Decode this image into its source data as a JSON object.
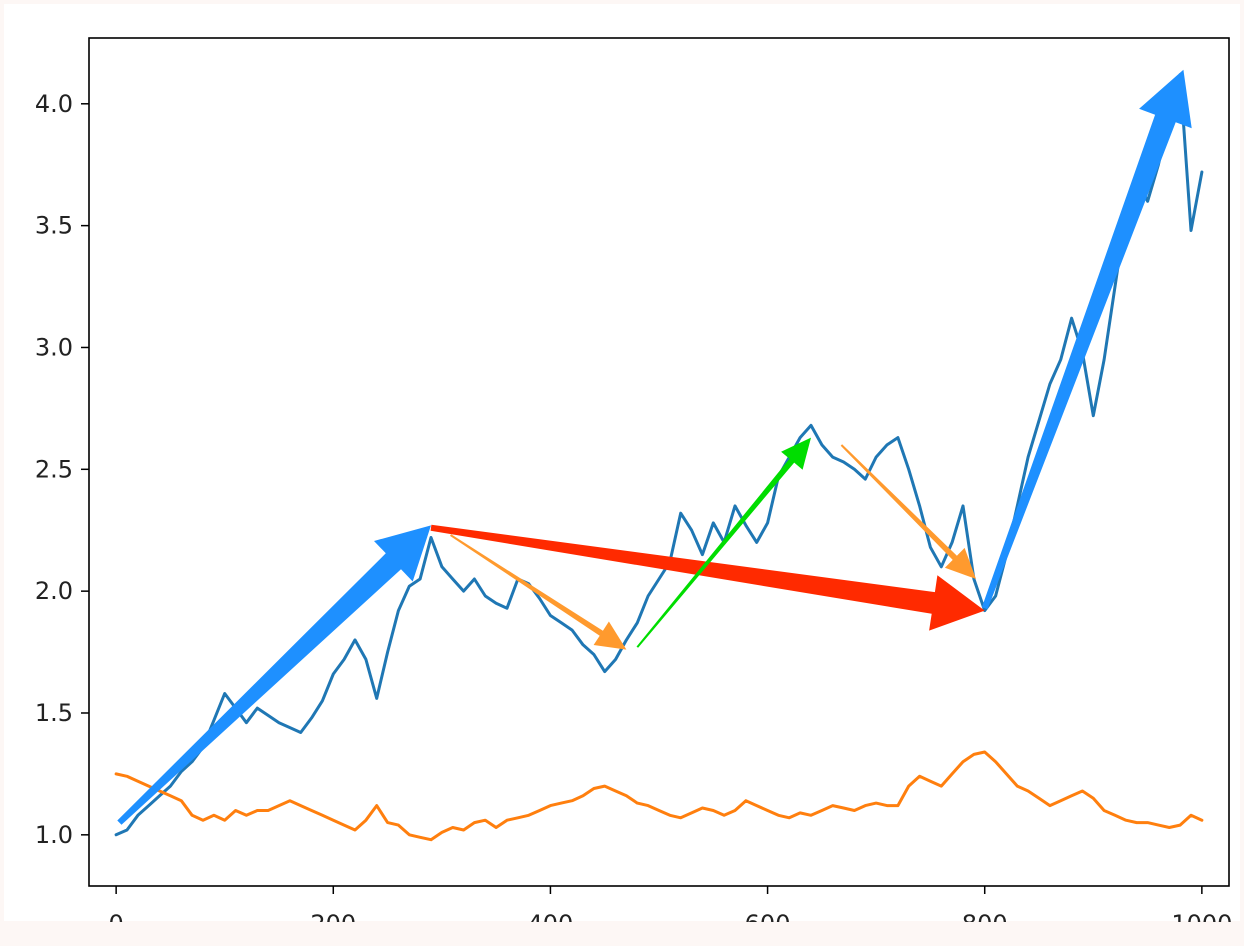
{
  "chart_data": {
    "type": "line",
    "title": "",
    "xlabel": "",
    "ylabel": "",
    "xlim": [
      -25,
      1025
    ],
    "ylim": [
      0.79,
      4.27
    ],
    "xticks": [
      0,
      200,
      400,
      600,
      800,
      1000
    ],
    "xtick_labels": [
      "0",
      "200",
      "400",
      "600",
      "800",
      "1000"
    ],
    "yticks": [
      1.0,
      1.5,
      2.0,
      2.5,
      3.0,
      3.5,
      4.0
    ],
    "ytick_labels": [
      "1.0",
      "1.5",
      "2.0",
      "2.5",
      "3.0",
      "3.5",
      "4.0"
    ],
    "grid": false,
    "legend": "none",
    "series": [
      {
        "color": "#1f77b4",
        "points": [
          [
            0,
            1.0
          ],
          [
            10,
            1.02
          ],
          [
            20,
            1.08
          ],
          [
            30,
            1.12
          ],
          [
            40,
            1.16
          ],
          [
            50,
            1.2
          ],
          [
            60,
            1.26
          ],
          [
            70,
            1.3
          ],
          [
            80,
            1.36
          ],
          [
            90,
            1.47
          ],
          [
            100,
            1.58
          ],
          [
            110,
            1.52
          ],
          [
            120,
            1.46
          ],
          [
            130,
            1.52
          ],
          [
            140,
            1.49
          ],
          [
            150,
            1.46
          ],
          [
            160,
            1.44
          ],
          [
            170,
            1.42
          ],
          [
            180,
            1.48
          ],
          [
            190,
            1.55
          ],
          [
            200,
            1.66
          ],
          [
            210,
            1.72
          ],
          [
            220,
            1.8
          ],
          [
            230,
            1.72
          ],
          [
            240,
            1.56
          ],
          [
            250,
            1.75
          ],
          [
            260,
            1.92
          ],
          [
            270,
            2.02
          ],
          [
            280,
            2.05
          ],
          [
            290,
            2.22
          ],
          [
            300,
            2.1
          ],
          [
            310,
            2.05
          ],
          [
            320,
            2.0
          ],
          [
            330,
            2.05
          ],
          [
            340,
            1.98
          ],
          [
            350,
            1.95
          ],
          [
            360,
            1.93
          ],
          [
            370,
            2.05
          ],
          [
            380,
            2.03
          ],
          [
            390,
            1.97
          ],
          [
            400,
            1.9
          ],
          [
            410,
            1.87
          ],
          [
            420,
            1.84
          ],
          [
            430,
            1.78
          ],
          [
            440,
            1.74
          ],
          [
            450,
            1.67
          ],
          [
            460,
            1.72
          ],
          [
            470,
            1.8
          ],
          [
            480,
            1.87
          ],
          [
            490,
            1.98
          ],
          [
            500,
            2.05
          ],
          [
            510,
            2.12
          ],
          [
            520,
            2.32
          ],
          [
            530,
            2.25
          ],
          [
            540,
            2.15
          ],
          [
            550,
            2.28
          ],
          [
            560,
            2.2
          ],
          [
            570,
            2.35
          ],
          [
            580,
            2.27
          ],
          [
            590,
            2.2
          ],
          [
            600,
            2.28
          ],
          [
            610,
            2.47
          ],
          [
            620,
            2.55
          ],
          [
            630,
            2.63
          ],
          [
            640,
            2.68
          ],
          [
            650,
            2.6
          ],
          [
            660,
            2.55
          ],
          [
            670,
            2.53
          ],
          [
            680,
            2.5
          ],
          [
            690,
            2.46
          ],
          [
            700,
            2.55
          ],
          [
            710,
            2.6
          ],
          [
            720,
            2.63
          ],
          [
            730,
            2.5
          ],
          [
            740,
            2.35
          ],
          [
            750,
            2.18
          ],
          [
            760,
            2.1
          ],
          [
            770,
            2.2
          ],
          [
            780,
            2.35
          ],
          [
            790,
            2.05
          ],
          [
            800,
            1.92
          ],
          [
            810,
            1.98
          ],
          [
            820,
            2.15
          ],
          [
            830,
            2.35
          ],
          [
            840,
            2.55
          ],
          [
            850,
            2.7
          ],
          [
            860,
            2.85
          ],
          [
            870,
            2.95
          ],
          [
            880,
            3.12
          ],
          [
            890,
            2.98
          ],
          [
            900,
            2.72
          ],
          [
            910,
            2.95
          ],
          [
            920,
            3.25
          ],
          [
            930,
            3.55
          ],
          [
            940,
            3.7
          ],
          [
            950,
            3.6
          ],
          [
            960,
            3.75
          ],
          [
            970,
            3.95
          ],
          [
            980,
            4.12
          ],
          [
            990,
            3.48
          ],
          [
            1000,
            3.72
          ]
        ]
      },
      {
        "color": "#ff7f0e",
        "points": [
          [
            0,
            1.25
          ],
          [
            10,
            1.24
          ],
          [
            20,
            1.22
          ],
          [
            30,
            1.2
          ],
          [
            40,
            1.18
          ],
          [
            50,
            1.16
          ],
          [
            60,
            1.14
          ],
          [
            70,
            1.08
          ],
          [
            80,
            1.06
          ],
          [
            90,
            1.08
          ],
          [
            100,
            1.06
          ],
          [
            110,
            1.1
          ],
          [
            120,
            1.08
          ],
          [
            130,
            1.1
          ],
          [
            140,
            1.1
          ],
          [
            150,
            1.12
          ],
          [
            160,
            1.14
          ],
          [
            170,
            1.12
          ],
          [
            180,
            1.1
          ],
          [
            190,
            1.08
          ],
          [
            200,
            1.06
          ],
          [
            210,
            1.04
          ],
          [
            220,
            1.02
          ],
          [
            230,
            1.06
          ],
          [
            240,
            1.12
          ],
          [
            250,
            1.05
          ],
          [
            260,
            1.04
          ],
          [
            270,
            1.0
          ],
          [
            280,
            0.99
          ],
          [
            290,
            0.98
          ],
          [
            300,
            1.01
          ],
          [
            310,
            1.03
          ],
          [
            320,
            1.02
          ],
          [
            330,
            1.05
          ],
          [
            340,
            1.06
          ],
          [
            350,
            1.03
          ],
          [
            360,
            1.06
          ],
          [
            370,
            1.07
          ],
          [
            380,
            1.08
          ],
          [
            390,
            1.1
          ],
          [
            400,
            1.12
          ],
          [
            410,
            1.13
          ],
          [
            420,
            1.14
          ],
          [
            430,
            1.16
          ],
          [
            440,
            1.19
          ],
          [
            450,
            1.2
          ],
          [
            460,
            1.18
          ],
          [
            470,
            1.16
          ],
          [
            480,
            1.13
          ],
          [
            490,
            1.12
          ],
          [
            500,
            1.1
          ],
          [
            510,
            1.08
          ],
          [
            520,
            1.07
          ],
          [
            530,
            1.09
          ],
          [
            540,
            1.11
          ],
          [
            550,
            1.1
          ],
          [
            560,
            1.08
          ],
          [
            570,
            1.1
          ],
          [
            580,
            1.14
          ],
          [
            590,
            1.12
          ],
          [
            600,
            1.1
          ],
          [
            610,
            1.08
          ],
          [
            620,
            1.07
          ],
          [
            630,
            1.09
          ],
          [
            640,
            1.08
          ],
          [
            650,
            1.1
          ],
          [
            660,
            1.12
          ],
          [
            670,
            1.11
          ],
          [
            680,
            1.1
          ],
          [
            690,
            1.12
          ],
          [
            700,
            1.13
          ],
          [
            710,
            1.12
          ],
          [
            720,
            1.12
          ],
          [
            730,
            1.2
          ],
          [
            740,
            1.24
          ],
          [
            750,
            1.22
          ],
          [
            760,
            1.2
          ],
          [
            770,
            1.25
          ],
          [
            780,
            1.3
          ],
          [
            790,
            1.33
          ],
          [
            800,
            1.34
          ],
          [
            810,
            1.3
          ],
          [
            820,
            1.25
          ],
          [
            830,
            1.2
          ],
          [
            840,
            1.18
          ],
          [
            850,
            1.15
          ],
          [
            860,
            1.12
          ],
          [
            870,
            1.14
          ],
          [
            880,
            1.16
          ],
          [
            890,
            1.18
          ],
          [
            900,
            1.15
          ],
          [
            910,
            1.1
          ],
          [
            920,
            1.08
          ],
          [
            930,
            1.06
          ],
          [
            940,
            1.05
          ],
          [
            950,
            1.05
          ],
          [
            960,
            1.04
          ],
          [
            970,
            1.03
          ],
          [
            980,
            1.04
          ],
          [
            990,
            1.08
          ],
          [
            1000,
            1.06
          ]
        ]
      }
    ],
    "annotations": [
      {
        "type": "arrow",
        "color": "#1e90ff",
        "from": [
          3,
          1.05
        ],
        "to": [
          290,
          2.27
        ],
        "weight": "thick"
      },
      {
        "type": "arrow",
        "color": "#ff2a00",
        "from": [
          290,
          2.26
        ],
        "to": [
          800,
          1.92
        ],
        "weight": "thick"
      },
      {
        "type": "arrow",
        "color": "#ff9a2e",
        "from": [
          308,
          2.23
        ],
        "to": [
          470,
          1.76
        ],
        "weight": "medium"
      },
      {
        "type": "arrow",
        "color": "#00dd00",
        "from": [
          480,
          1.77
        ],
        "to": [
          640,
          2.63
        ],
        "weight": "medium"
      },
      {
        "type": "arrow",
        "color": "#ff9a2e",
        "from": [
          668,
          2.6
        ],
        "to": [
          792,
          2.05
        ],
        "weight": "medium"
      },
      {
        "type": "arrow",
        "color": "#1e90ff",
        "from": [
          800,
          1.93
        ],
        "to": [
          983,
          4.14
        ],
        "weight": "thick"
      }
    ]
  }
}
